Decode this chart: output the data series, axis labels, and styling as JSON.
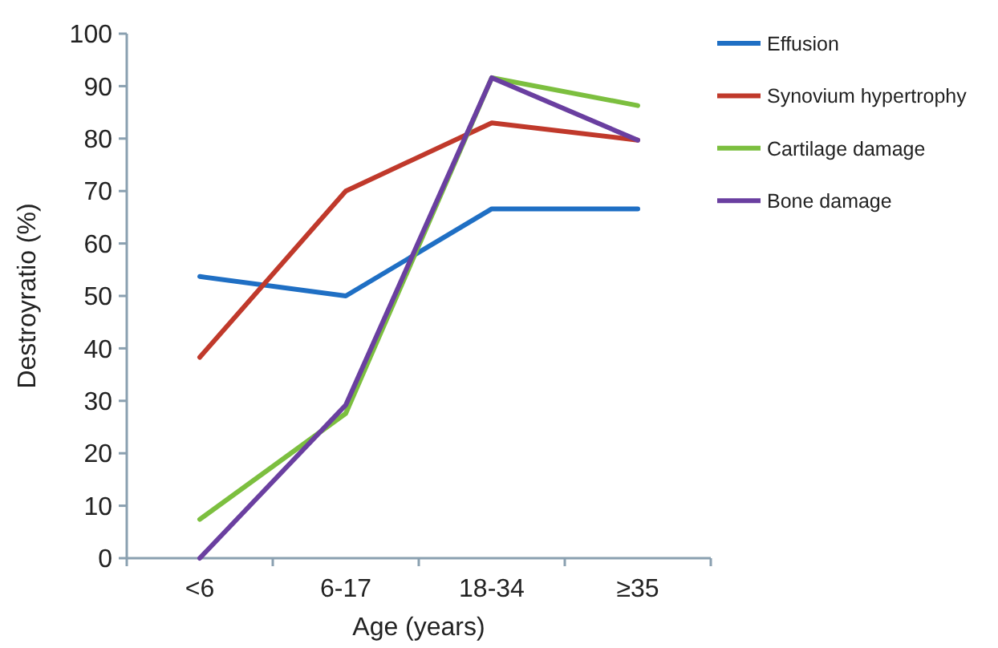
{
  "chart_data": {
    "type": "line",
    "xlabel": "Age (years)",
    "ylabel": "Destroyratio (%)",
    "categories": [
      "<6",
      "6-17",
      "18-34",
      "≥35"
    ],
    "series": [
      {
        "name": "Effusion",
        "color": "#1f6fc4",
        "values": [
          53.7,
          50,
          66.6,
          66.6
        ]
      },
      {
        "name": "Synovium hypertrophy",
        "color": "#c0392b",
        "values": [
          38.3,
          70,
          83,
          79.7
        ]
      },
      {
        "name": "Cartilage damage",
        "color": "#7cbf3f",
        "values": [
          7.4,
          27.6,
          91.6,
          86.3
        ]
      },
      {
        "name": "Bone damage",
        "color": "#6a3fa0",
        "values": [
          0,
          29.2,
          91.6,
          79.7
        ]
      }
    ],
    "ylim": [
      0,
      100
    ],
    "yticks": [
      0,
      10,
      20,
      30,
      40,
      50,
      60,
      70,
      80,
      90,
      100
    ],
    "grid": false,
    "legend": "right",
    "marker": "none",
    "line_style": "solid"
  }
}
